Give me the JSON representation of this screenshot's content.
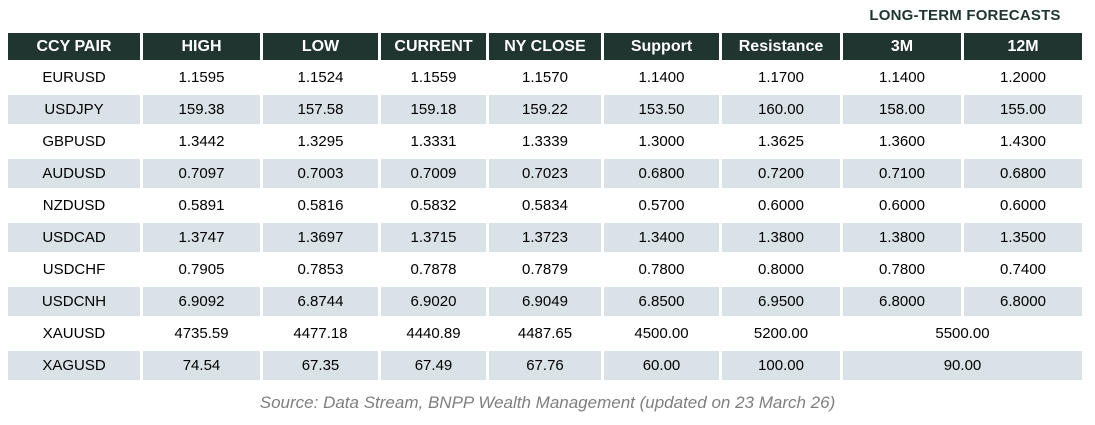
{
  "title": "LONG-TERM FORECASTS",
  "footer": {
    "source_text": "Source: Data Stream, BNPP Wealth Management (updated on 23 March 26)"
  },
  "colors": {
    "header_bg": "#203430",
    "row_alt_bg": "#d9e2e7",
    "title_text": "#1f3531",
    "footer_text": "#7f7f7f"
  },
  "chart_data": {
    "type": "table",
    "title": "LONG-TERM FORECASTS",
    "columns": [
      "CCY PAIR",
      "HIGH",
      "LOW",
      "CURRENT",
      "NY CLOSE",
      "Support",
      "Resistance",
      "3M",
      "12M"
    ],
    "forecast_group_label": "LONG-TERM FORECASTS",
    "forecast_group_columns": [
      "3M",
      "12M"
    ],
    "rows": [
      {
        "pair": "EURUSD",
        "high": "1.1595",
        "low": "1.1524",
        "current": "1.1559",
        "ny_close": "1.1570",
        "support": "1.1400",
        "resistance": "1.1700",
        "m3": "1.1400",
        "m12": "1.2000"
      },
      {
        "pair": "USDJPY",
        "high": "159.38",
        "low": "157.58",
        "current": "159.18",
        "ny_close": "159.22",
        "support": "153.50",
        "resistance": "160.00",
        "m3": "158.00",
        "m12": "155.00"
      },
      {
        "pair": "GBPUSD",
        "high": "1.3442",
        "low": "1.3295",
        "current": "1.3331",
        "ny_close": "1.3339",
        "support": "1.3000",
        "resistance": "1.3625",
        "m3": "1.3600",
        "m12": "1.4300"
      },
      {
        "pair": "AUDUSD",
        "high": "0.7097",
        "low": "0.7003",
        "current": "0.7009",
        "ny_close": "0.7023",
        "support": "0.6800",
        "resistance": "0.7200",
        "m3": "0.7100",
        "m12": "0.6800"
      },
      {
        "pair": "NZDUSD",
        "high": "0.5891",
        "low": "0.5816",
        "current": "0.5832",
        "ny_close": "0.5834",
        "support": "0.5700",
        "resistance": "0.6000",
        "m3": "0.6000",
        "m12": "0.6000"
      },
      {
        "pair": "USDCAD",
        "high": "1.3747",
        "low": "1.3697",
        "current": "1.3715",
        "ny_close": "1.3723",
        "support": "1.3400",
        "resistance": "1.3800",
        "m3": "1.3800",
        "m12": "1.3500"
      },
      {
        "pair": "USDCHF",
        "high": "0.7905",
        "low": "0.7853",
        "current": "0.7878",
        "ny_close": "0.7879",
        "support": "0.7800",
        "resistance": "0.8000",
        "m3": "0.7800",
        "m12": "0.7400"
      },
      {
        "pair": "USDCNH",
        "high": "6.9092",
        "low": "6.8744",
        "current": "6.9020",
        "ny_close": "6.9049",
        "support": "6.8500",
        "resistance": "6.9500",
        "m3": "6.8000",
        "m12": "6.8000"
      },
      {
        "pair": "XAUUSD",
        "high": "4735.59",
        "low": "4477.18",
        "current": "4440.89",
        "ny_close": "4487.65",
        "support": "4500.00",
        "resistance": "5200.00",
        "forecast_merged": "5500.00"
      },
      {
        "pair": "XAGUSD",
        "high": "74.54",
        "low": "67.35",
        "current": "67.49",
        "ny_close": "67.76",
        "support": "60.00",
        "resistance": "100.00",
        "forecast_merged": "90.00"
      }
    ],
    "source": "Source: Data Stream, BNPP Wealth Management (updated on 23 March 26)"
  }
}
